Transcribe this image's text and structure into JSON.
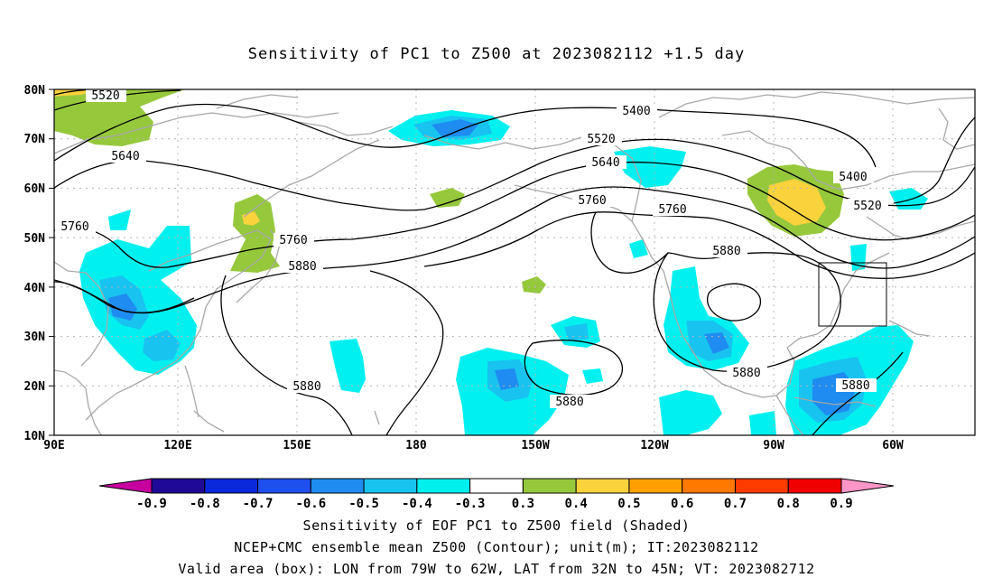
{
  "title": "Sensitivity of PC1 to Z500 at 2023082112 +1.5 day",
  "lat_labels": [
    "80N",
    "70N",
    "60N",
    "50N",
    "40N",
    "30N",
    "20N",
    "10N"
  ],
  "lon_labels": [
    "90E",
    "120E",
    "150E",
    "180",
    "150W",
    "120W",
    "90W",
    "60W"
  ],
  "contour_labels": [
    "5520",
    "5400",
    "5520",
    "5640",
    "5640",
    "5760",
    "5760",
    "5760",
    "5880",
    "5760",
    "5880",
    "5880",
    "5880",
    "5880",
    "5880",
    "5400",
    "5520",
    "5880"
  ],
  "colorbar": {
    "labels": [
      "-0.9",
      "-0.8",
      "-0.7",
      "-0.6",
      "-0.5",
      "-0.4",
      "-0.3",
      "0.3",
      "0.4",
      "0.5",
      "0.6",
      "0.7",
      "0.8",
      "0.9"
    ],
    "colors": [
      "#c800a0",
      "#1e0a96",
      "#0a28dc",
      "#1e50f0",
      "#1e8cf0",
      "#19c3f0",
      "#00f0f0",
      "#ffffff",
      "#96c83c",
      "#fad23c",
      "#ffa000",
      "#ff7800",
      "#ff3c00",
      "#f00000",
      "#ff96c8"
    ]
  },
  "caption": {
    "line1": "Sensitivity of EOF PC1 to Z500 field (Shaded)",
    "line2": "NCEP+CMC ensemble mean Z500 (Contour); unit(m); IT:2023082112",
    "line3": "Valid area (box): LON from 79W to 62W, LAT from 32N to 45N; VT: 2023082712"
  }
}
